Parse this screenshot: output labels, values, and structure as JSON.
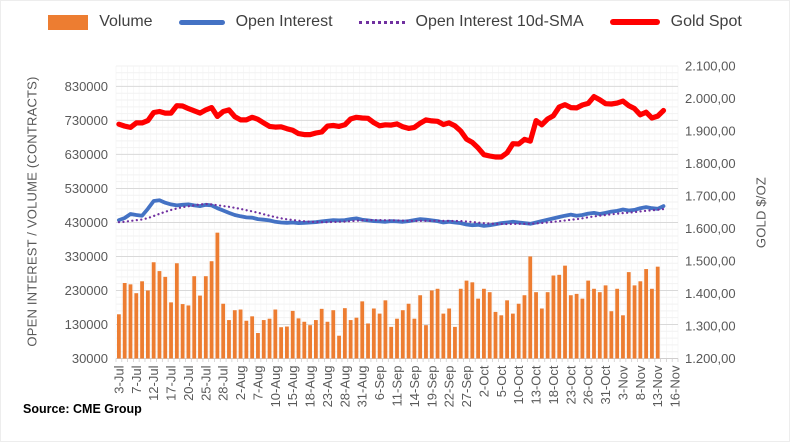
{
  "source_note": "Source: CME Group",
  "chart_data": {
    "type": "combo-bar-line",
    "title": "",
    "legend_position": "top",
    "grid": "horizontal-minor-and-major",
    "categories": [
      "3-Jul",
      "5-Jul",
      "6-Jul",
      "7-Jul",
      "10-Jul",
      "11-Jul",
      "12-Jul",
      "13-Jul",
      "14-Jul",
      "17-Jul",
      "18-Jul",
      "19-Jul",
      "20-Jul",
      "21-Jul",
      "24-Jul",
      "25-Jul",
      "26-Jul",
      "27-Jul",
      "28-Jul",
      "31-Jul",
      "1-Aug",
      "2-Aug",
      "3-Aug",
      "4-Aug",
      "7-Aug",
      "8-Aug",
      "9-Aug",
      "10-Aug",
      "11-Aug",
      "14-Aug",
      "15-Aug",
      "16-Aug",
      "17-Aug",
      "18-Aug",
      "21-Aug",
      "22-Aug",
      "23-Aug",
      "24-Aug",
      "25-Aug",
      "28-Aug",
      "29-Aug",
      "30-Aug",
      "31-Aug",
      "1-Sep",
      "5-Sep",
      "6-Sep",
      "7-Sep",
      "8-Sep",
      "11-Sep",
      "12-Sep",
      "13-Sep",
      "14-Sep",
      "15-Sep",
      "18-Sep",
      "19-Sep",
      "20-Sep",
      "21-Sep",
      "22-Sep",
      "25-Sep",
      "26-Sep",
      "27-Sep",
      "28-Sep",
      "29-Sep",
      "2-Oct",
      "3-Oct",
      "4-Oct",
      "5-Oct",
      "6-Oct",
      "9-Oct",
      "10-Oct",
      "11-Oct",
      "12-Oct",
      "13-Oct",
      "16-Oct",
      "17-Oct",
      "18-Oct",
      "19-Oct",
      "20-Oct",
      "23-Oct",
      "24-Oct",
      "25-Oct",
      "26-Oct",
      "27-Oct",
      "30-Oct",
      "31-Oct",
      "1-Nov",
      "2-Nov",
      "3-Nov",
      "6-Nov",
      "7-Nov",
      "8-Nov",
      "9-Nov",
      "10-Nov",
      "13-Nov",
      "14-Nov",
      "15-Nov",
      "16-Nov"
    ],
    "x_axis": {
      "label_every": 3,
      "label_rotation": -90
    },
    "y_left": {
      "title": "OPEN INTEREST / VOLUME (CONTRACTS)",
      "min": 30000,
      "max": 890000,
      "tick_interval": 100000,
      "minor_interval": 20000,
      "tick_labels": [
        "30000",
        "130000",
        "230000",
        "330000",
        "430000",
        "530000",
        "630000",
        "730000",
        "830000"
      ]
    },
    "y_right": {
      "title": "GOLD $/OZ",
      "min": 1200,
      "max": 2100,
      "tick_interval": 100,
      "tick_labels": [
        "1.200,00",
        "1.300,00",
        "1.400,00",
        "1.500,00",
        "1.600,00",
        "1.700,00",
        "1.800,00",
        "1.900,00",
        "2.000,00",
        "2.100,00"
      ]
    },
    "series": [
      {
        "name": "Volume",
        "type": "bar",
        "swatch": "bar",
        "axis": "left",
        "color": "#ED7D31",
        "values": [
          160000,
          252000,
          248000,
          222000,
          257000,
          230000,
          313000,
          287000,
          270000,
          195000,
          310000,
          190000,
          186000,
          272000,
          215000,
          272000,
          316000,
          400000,
          191000,
          143000,
          172000,
          174000,
          141000,
          154000,
          105000,
          143000,
          147000,
          174000,
          122000,
          124000,
          170000,
          148000,
          138000,
          128000,
          143000,
          176000,
          138000,
          172000,
          97000,
          178000,
          143000,
          150000,
          198000,
          133000,
          177000,
          162000,
          201000,
          123000,
          147000,
          172000,
          191000,
          147000,
          216000,
          128000,
          230000,
          235000,
          162000,
          177000,
          123000,
          235000,
          259000,
          254000,
          206000,
          235000,
          225000,
          167000,
          157000,
          201000,
          162000,
          191000,
          216000,
          330000,
          225000,
          177000,
          225000,
          274000,
          276000,
          303000,
          216000,
          220000,
          206000,
          259000,
          235000,
          225000,
          245000,
          169000,
          235000,
          157000,
          284000,
          245000,
          257000,
          293000,
          235000,
          300000,
          null,
          null,
          null
        ]
      },
      {
        "name": "Open Interest",
        "type": "line",
        "swatch": "line",
        "axis": "left",
        "color": "#4472C4",
        "stroke_width": 3.8,
        "values": [
          437000,
          443000,
          455000,
          452000,
          450000,
          470000,
          493000,
          495000,
          488000,
          483000,
          480000,
          482000,
          483000,
          480000,
          478000,
          482000,
          480000,
          472000,
          465000,
          458000,
          452000,
          448000,
          445000,
          444000,
          440000,
          438000,
          436000,
          432000,
          430000,
          429000,
          430000,
          428000,
          429000,
          430000,
          431000,
          433000,
          435000,
          437000,
          436000,
          437000,
          440000,
          442000,
          438000,
          436000,
          434000,
          433000,
          432000,
          434000,
          433000,
          432000,
          434000,
          437000,
          440000,
          438000,
          436000,
          434000,
          430000,
          432000,
          430000,
          428000,
          424000,
          422000,
          423000,
          420000,
          422000,
          425000,
          428000,
          430000,
          432000,
          430000,
          428000,
          426000,
          430000,
          434000,
          438000,
          442000,
          446000,
          450000,
          453000,
          450000,
          452000,
          456000,
          458000,
          455000,
          458000,
          462000,
          464000,
          468000,
          465000,
          467000,
          472000,
          475000,
          472000,
          470000,
          478000,
          null,
          null
        ]
      },
      {
        "name": "Open Interest 10d-SMA",
        "type": "dotted-line",
        "swatch": "dotted",
        "axis": "left",
        "color": "#7030A0",
        "stroke_width": 2.2,
        "values": [
          430700,
          432000,
          434500,
          436700,
          438700,
          442700,
          449000,
          455500,
          461300,
          466600,
          470900,
          474800,
          477600,
          480400,
          483200,
          484400,
          483100,
          480800,
          478500,
          476000,
          473200,
          469800,
          466000,
          462400,
          458600,
          454200,
          449800,
          445800,
          442300,
          439400,
          437200,
          435200,
          433600,
          432200,
          431300,
          430800,
          430700,
          431200,
          431800,
          432600,
          433600,
          435000,
          435900,
          436500,
          436800,
          436800,
          436500,
          436200,
          435900,
          435400,
          434800,
          434300,
          434500,
          434700,
          434900,
          435000,
          434800,
          434600,
          434300,
          433900,
          432900,
          431400,
          429700,
          427900,
          426500,
          425600,
          425400,
          425200,
          425400,
          425600,
          426000,
          426400,
          427100,
          428500,
          430100,
          431800,
          433600,
          435600,
          437700,
          439700,
          442100,
          445100,
          447900,
          450000,
          452000,
          454000,
          455800,
          457600,
          458800,
          460500,
          462500,
          464400,
          465800,
          467300,
          469300,
          null,
          null
        ]
      },
      {
        "name": "Gold Spot",
        "type": "line",
        "swatch": "thick",
        "axis": "right",
        "color": "#FF0000",
        "stroke_width": 5.2,
        "values": [
          1921,
          1915,
          1911,
          1925,
          1925,
          1932,
          1957,
          1960,
          1955,
          1955,
          1978,
          1977,
          1969,
          1962,
          1955,
          1965,
          1972,
          1945,
          1960,
          1965,
          1944,
          1934,
          1934,
          1942,
          1936,
          1925,
          1914,
          1912,
          1913,
          1907,
          1902,
          1892,
          1889,
          1889,
          1894,
          1897,
          1915,
          1917,
          1914,
          1919,
          1937,
          1942,
          1940,
          1939,
          1926,
          1916,
          1919,
          1918,
          1922,
          1913,
          1908,
          1911,
          1924,
          1934,
          1931,
          1930,
          1920,
          1925,
          1916,
          1900,
          1875,
          1865,
          1848,
          1827,
          1823,
          1820,
          1820,
          1833,
          1861,
          1860,
          1874,
          1869,
          1932,
          1919,
          1937,
          1947,
          1974,
          1981,
          1972,
          1971,
          1980,
          1985,
          2006,
          1996,
          1984,
          1983,
          1986,
          1992,
          1978,
          1969,
          1950,
          1958,
          1940,
          1946,
          1963,
          null,
          null
        ]
      }
    ]
  }
}
